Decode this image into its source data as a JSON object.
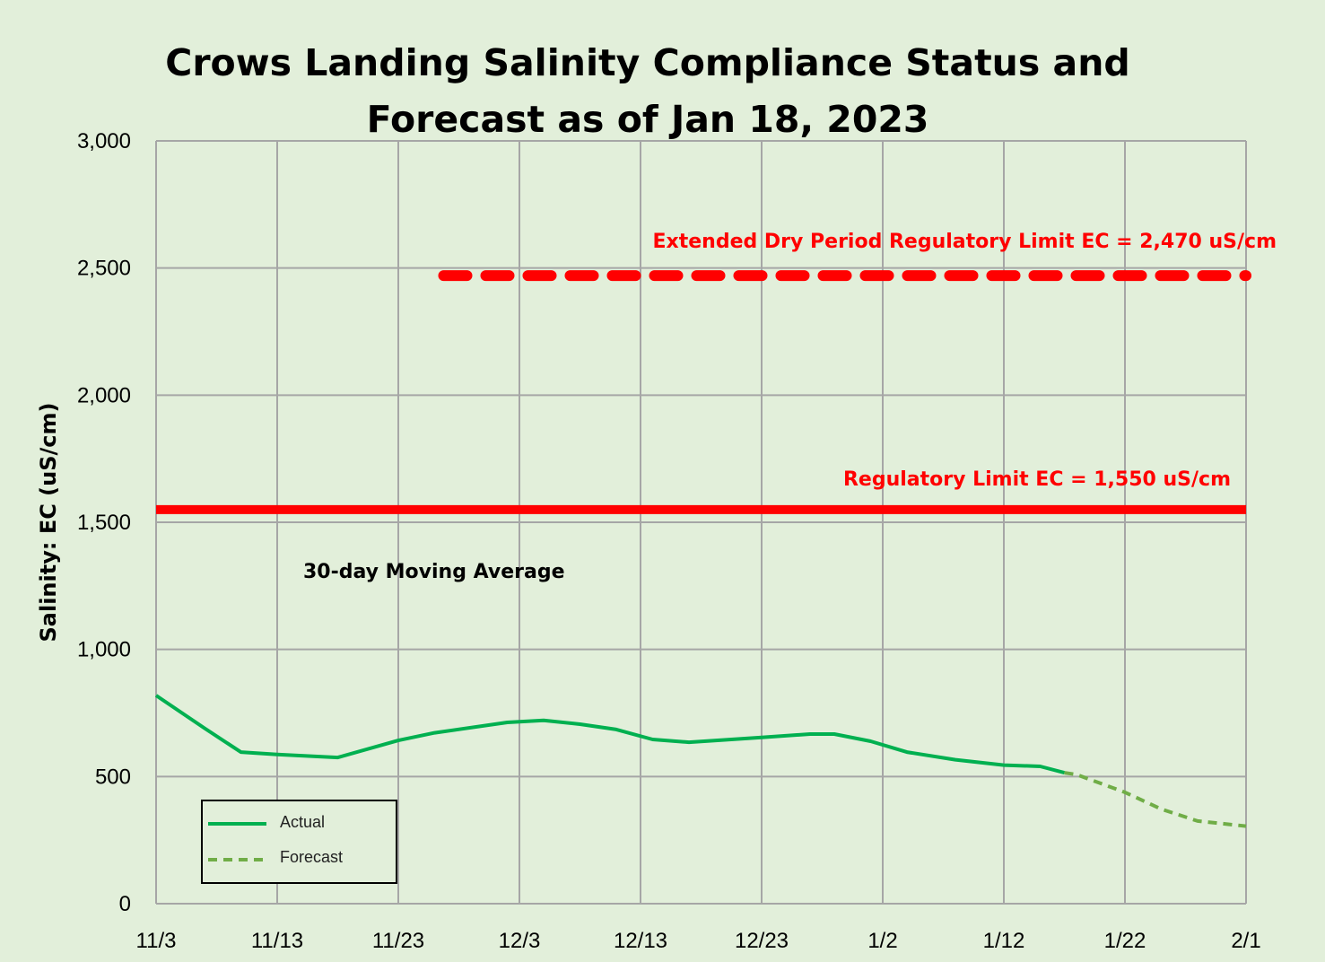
{
  "chart_data": {
    "type": "line",
    "title_line1": "Crows Landing Salinity Compliance Status and",
    "title_line2": "Forecast as of Jan 18, 2023",
    "xlabel": "",
    "ylabel": "Salinity: EC (uS/cm)",
    "xlim": [
      "2022-11-03",
      "2023-02-01"
    ],
    "ylim": [
      0,
      3000
    ],
    "x_ticks": [
      "11/3",
      "11/13",
      "11/23",
      "12/3",
      "12/13",
      "12/23",
      "1/2",
      "1/12",
      "1/22",
      "2/1"
    ],
    "y_ticks": [
      "0",
      "500",
      "1,000",
      "1,500",
      "2,000",
      "2,500",
      "3,000"
    ],
    "y_tick_values": [
      0,
      500,
      1000,
      1500,
      2000,
      2500,
      3000
    ],
    "grid": true,
    "legend_placement": "bottom-left",
    "series": [
      {
        "name": "Actual",
        "color": "#00b050",
        "style": "solid",
        "x": [
          "2022-11-03",
          "2022-11-07",
          "2022-11-10",
          "2022-11-13",
          "2022-11-18",
          "2022-11-23",
          "2022-11-26",
          "2022-12-02",
          "2022-12-05",
          "2022-12-08",
          "2022-12-11",
          "2022-12-14",
          "2022-12-17",
          "2022-12-23",
          "2022-12-27",
          "2022-12-29",
          "2023-01-01",
          "2023-01-04",
          "2023-01-08",
          "2023-01-12",
          "2023-01-15",
          "2023-01-17"
        ],
        "y": [
          819,
          690,
          596,
          587,
          575,
          642,
          672,
          713,
          721,
          706,
          685,
          646,
          635,
          654,
          667,
          667,
          639,
          596,
          566,
          545,
          540,
          515
        ]
      },
      {
        "name": "Forecast",
        "color": "#70ad47",
        "style": "dashed",
        "x": [
          "2023-01-17",
          "2023-01-18",
          "2023-01-22",
          "2023-01-25",
          "2023-01-28",
          "2023-02-01"
        ],
        "y": [
          515,
          508,
          438,
          372,
          325,
          305
        ]
      }
    ],
    "reference_lines": [
      {
        "label": "Regulatory Limit EC = 1,550 uS/cm",
        "value": 1550,
        "color": "#ff0000",
        "style": "solid",
        "x_start": "2022-11-03",
        "x_end": "2023-02-01"
      },
      {
        "label": "Extended Dry Period Regulatory Limit EC = 2,470 uS/cm",
        "value": 2470,
        "color": "#ff0000",
        "style": "dashed",
        "x_start": "2022-11-26",
        "x_end": "2023-02-01"
      }
    ],
    "annotations": [
      "30-day Moving Average"
    ]
  }
}
